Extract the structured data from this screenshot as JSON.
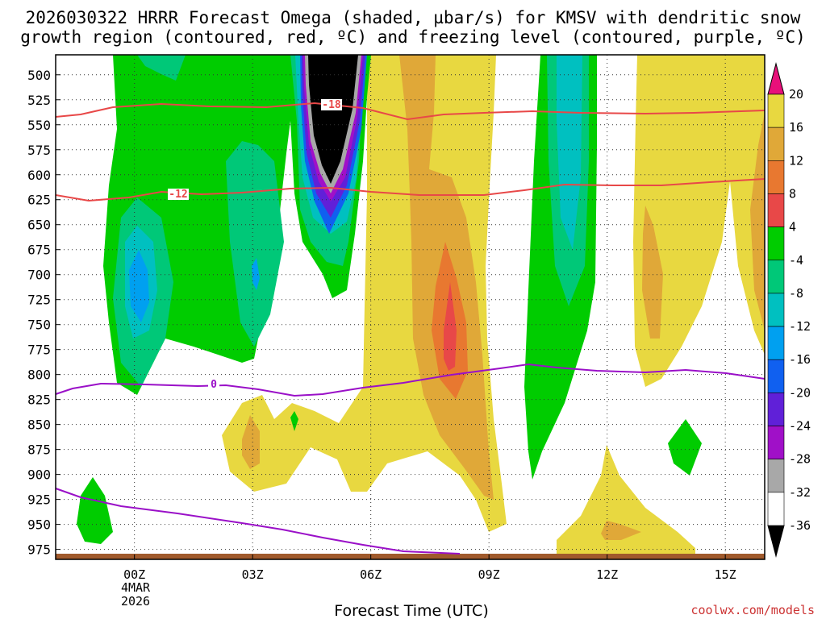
{
  "chart_data": {
    "type": "heatmap",
    "title_line1": "2026030322 HRRR Forecast Omega (shaded, µbar/s) for KMSV with dendritic snow",
    "title_line2": "growth region (contoured, red, ºC) and freezing level (contoured, purple, ºC)",
    "xlabel": "Forecast Time (UTC)",
    "credit": "coolwx.com/models",
    "y_ticks": [
      500,
      525,
      550,
      575,
      600,
      625,
      650,
      675,
      700,
      725,
      750,
      775,
      800,
      825,
      850,
      875,
      900,
      925,
      950,
      975
    ],
    "y_tick_labels": [
      "500",
      "525",
      "550",
      "575",
      "600",
      "625",
      "650",
      "675",
      "700",
      "725",
      "750",
      "775",
      "800",
      "825",
      "850",
      "875",
      "900",
      "925",
      "950",
      "975"
    ],
    "x_ticks": [
      0,
      3,
      6,
      9,
      12,
      15
    ],
    "x_tick_labels": [
      "00Z",
      "03Z",
      "06Z",
      "09Z",
      "12Z",
      "15Z"
    ],
    "x_date_labels": [
      "4MAR",
      "2026"
    ],
    "xlim": [
      -2,
      16
    ],
    "ylim": [
      480,
      985
    ],
    "colorbar": {
      "levels": [
        -36,
        -32,
        -28,
        -24,
        -20,
        -16,
        -12,
        -8,
        -4,
        4,
        8,
        12,
        16,
        20
      ],
      "labels": [
        "20",
        "16",
        "12",
        "8",
        "4",
        "-4",
        "-8",
        "-12",
        "-16",
        "-20",
        "-24",
        "-28",
        "-32",
        "-36"
      ],
      "colors": [
        "#e8d840",
        "#e0a838",
        "#e87830",
        "#e84848",
        "#00cc00",
        "#00c878",
        "#00c0c0",
        "#00a0f0",
        "#1060f0",
        "#6020d8",
        "#a010c8",
        "#a8a8a8",
        "#ffffff"
      ],
      "top_arrow_color": "#e8107a",
      "bottom_arrow_color": "#000000"
    },
    "contour_dgz_labels": [
      "-18",
      "-12"
    ],
    "contour_freezing_label": "0",
    "colors": {
      "dgz": "#e84848",
      "freezing": "#9a10c8",
      "ground": "#a05a2c",
      "yellow": "#e8d840",
      "orange_light": "#e0a838",
      "orange": "#e87830",
      "red": "#e84848",
      "green": "#00cc00",
      "teal": "#00c878",
      "cyan": "#00c0c0",
      "blue": "#00a0f0",
      "black": "#000000"
    }
  }
}
